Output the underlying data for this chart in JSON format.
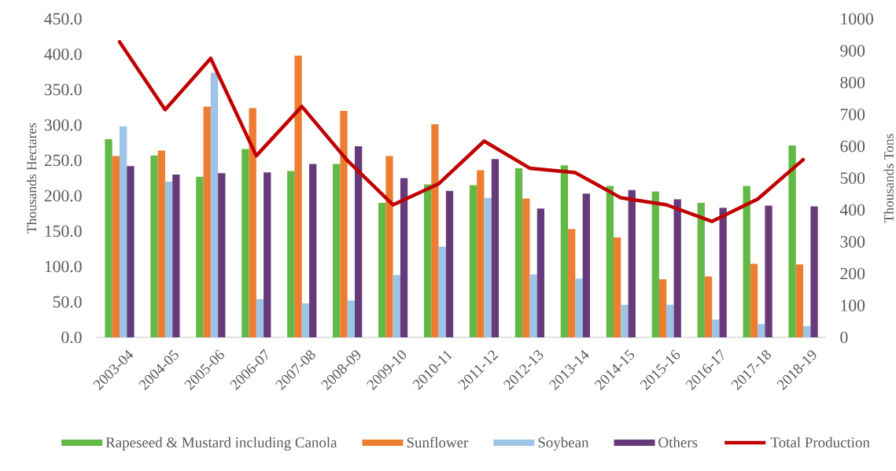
{
  "chart_data": {
    "type": "bar",
    "categories": [
      "2003-04",
      "2004-05",
      "2005-06",
      "2006-07",
      "2007-08",
      "2008-09",
      "2009-10",
      "2010-11",
      "2011-12",
      "2012-13",
      "2013-14",
      "2014-15",
      "2015-16",
      "2016-17",
      "2017-18",
      "2018-19"
    ],
    "series": [
      {
        "name": "Rapeseed & Mustard including Canola",
        "color": "#62b946",
        "values": [
          280,
          257,
          227,
          266,
          235,
          245,
          190,
          216,
          215,
          239,
          243,
          214,
          206,
          190,
          214,
          271
        ]
      },
      {
        "name": "Sunflower",
        "color": "#ed7d31",
        "values": [
          256,
          264,
          326,
          324,
          398,
          320,
          256,
          301,
          236,
          196,
          153,
          141,
          82,
          86,
          104,
          103
        ]
      },
      {
        "name": "Soybean",
        "color": "#9dc3e6",
        "values": [
          298,
          220,
          374,
          54,
          48,
          52,
          88,
          128,
          197,
          89,
          83,
          46,
          46,
          25,
          19,
          16
        ]
      },
      {
        "name": "Others",
        "color": "#673a7b",
        "values": [
          242,
          230,
          232,
          233,
          245,
          270,
          225,
          207,
          252,
          182,
          203,
          208,
          195,
          183,
          186,
          185
        ]
      },
      {
        "name": "Total Production",
        "type": "line",
        "axis": "y2",
        "color": "#c00000",
        "values": [
          928,
          715,
          876,
          570,
          725,
          555,
          416,
          482,
          616,
          531,
          517,
          438,
          416,
          364,
          434,
          558
        ]
      }
    ],
    "ylabel": "Thousands Hectares",
    "y2label": "Thousands Tons",
    "ylim": [
      0,
      450
    ],
    "yticks": [
      {
        "value": 0,
        "label": "0.0"
      },
      {
        "value": 50,
        "label": "50.0"
      },
      {
        "value": 100,
        "label": "100.0"
      },
      {
        "value": 150,
        "label": "150.0"
      },
      {
        "value": 200,
        "label": "200.0"
      },
      {
        "value": 250,
        "label": "250.0"
      },
      {
        "value": 300,
        "label": "300.0"
      },
      {
        "value": 350,
        "label": "350.0"
      },
      {
        "value": 400,
        "label": "400.0"
      },
      {
        "value": 450,
        "label": "450.0"
      }
    ],
    "y2lim": [
      0,
      1000
    ],
    "y2ticks": [
      0,
      100,
      200,
      300,
      400,
      500,
      600,
      700,
      800,
      900,
      1000
    ],
    "legend": "bottom",
    "line_style": "solid"
  }
}
